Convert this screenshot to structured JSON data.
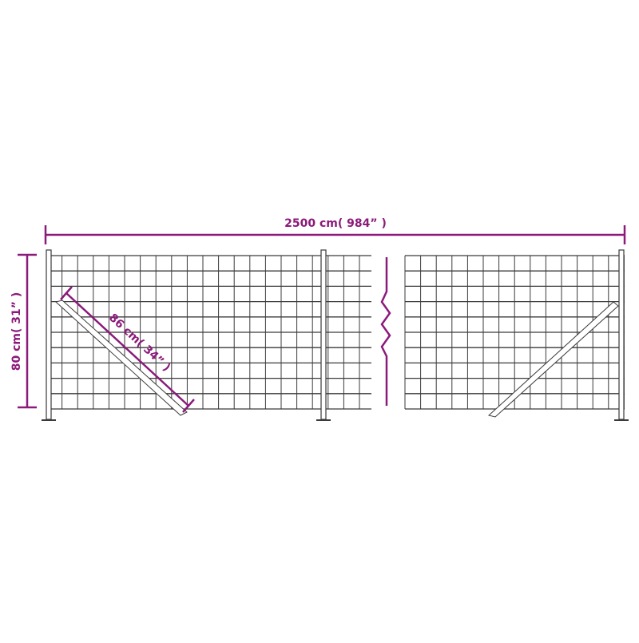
{
  "colors": {
    "dimension": "#8b1a7a",
    "fence": "#3a3a3a"
  },
  "dimensions": {
    "length": "2500 cm( 984” )",
    "height": "80 cm( 31” )",
    "brace": "86 cm( 34” )"
  },
  "icons": {
    "break": "zigzag-break-icon"
  }
}
